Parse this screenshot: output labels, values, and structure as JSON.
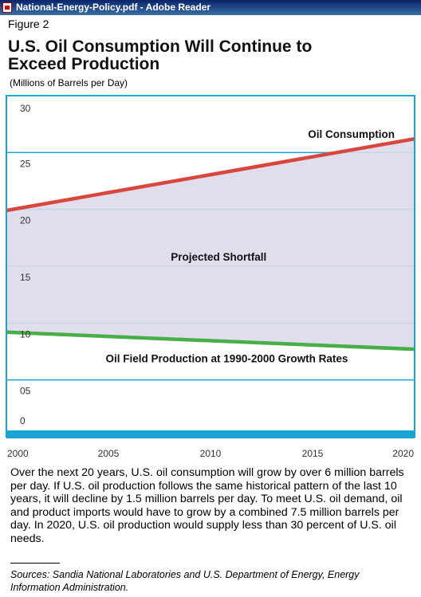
{
  "window": {
    "title": "National-Energy-Policy.pdf - Adobe Reader"
  },
  "figure": {
    "label": "Figure 2",
    "title": "U.S. Oil Consumption Will Continue to Exceed Production",
    "unit": "(Millions of Barrels per Day)"
  },
  "chart_data": {
    "type": "line",
    "x": [
      2000,
      2020
    ],
    "xticks": [
      "2000",
      "2005",
      "2010",
      "2015",
      "2020"
    ],
    "ytick_labels": [
      "30",
      "25",
      "20",
      "15",
      "10",
      "05",
      "0"
    ],
    "ylim": [
      0,
      30
    ],
    "xlim": [
      2000,
      2020
    ],
    "grid": true,
    "series": [
      {
        "name": "Oil Consumption",
        "values": [
          19.9,
          26.2
        ],
        "color": "#d9463d"
      },
      {
        "name": "Oil Field Production at 1990-2000 Growth Rates",
        "values": [
          9.2,
          7.7
        ],
        "color": "#48ae48"
      }
    ],
    "shaded_region": {
      "label": "Projected Shortfall",
      "color": "#ddd9ea"
    },
    "colors": {
      "frame": "#1aa3d6",
      "grid": "#1aa3d6",
      "bottom_bar": "#1aa3d6"
    }
  },
  "body": {
    "paragraph": "Over the next 20 years, U.S. oil consumption will grow by over 6 million barrels per day. If U.S. oil production follows the same historical pattern of the last 10 years, it will decline by 1.5 million barrels per day. To meet U.S. oil demand, oil and product imports would have to grow by a combined 7.5 million barrels per day. In 2020, U.S. oil production would supply less than 30 percent of U.S. oil needs."
  },
  "sources": "Sources:  Sandia National Laboratories and U.S. Department of Energy, Energy Information Administration."
}
